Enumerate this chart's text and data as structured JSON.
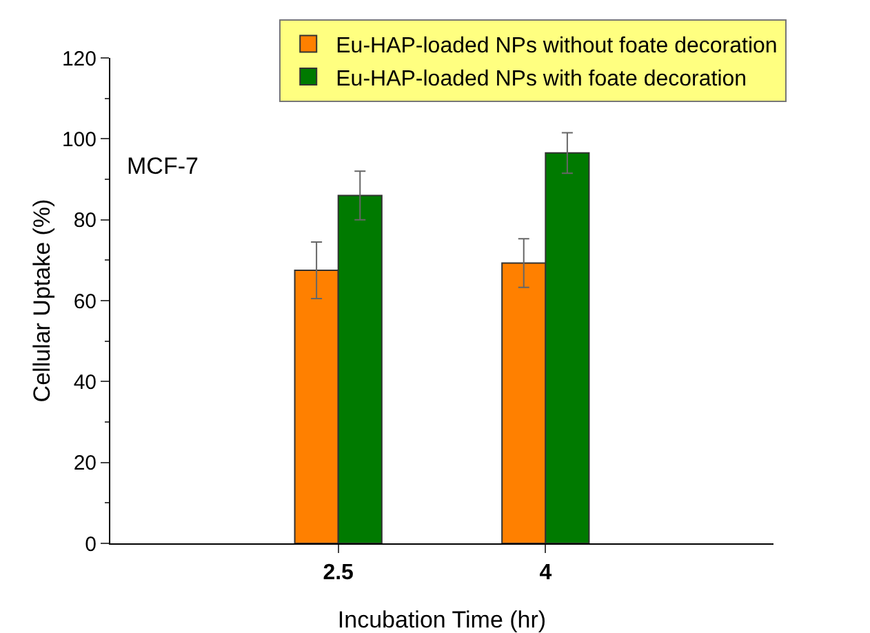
{
  "chart_data": {
    "type": "bar",
    "xlabel": "Incubation Time (hr)",
    "ylabel": "Cellular Uptake (%)",
    "annotations": [
      "MCF-7"
    ],
    "categories": [
      "2.5",
      "4"
    ],
    "series": [
      {
        "name": "Eu-HAP-loaded NPs without foate decoration",
        "color": "#ff8000",
        "values": [
          67.5,
          69.3
        ],
        "errors": [
          7,
          6
        ]
      },
      {
        "name": "Eu-HAP-loaded NPs with foate decoration",
        "color": "#007a00",
        "values": [
          86,
          96.5
        ],
        "errors": [
          6,
          5
        ]
      }
    ],
    "ylim": [
      0,
      120
    ],
    "yticks": [
      0,
      20,
      40,
      60,
      80,
      100,
      120
    ],
    "grid": false,
    "legend": "top right"
  }
}
